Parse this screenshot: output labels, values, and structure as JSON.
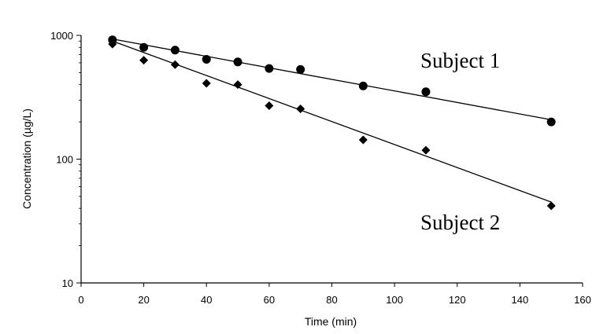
{
  "chart_data": {
    "type": "scatter",
    "title": "",
    "xlabel": "Time (min)",
    "ylabel": "Concentration (µg/L)",
    "xlim": [
      0,
      160
    ],
    "ylim": [
      10,
      1000
    ],
    "yscale": "log",
    "xticks": [
      0,
      20,
      40,
      60,
      80,
      100,
      120,
      140,
      160
    ],
    "xtick_labels": [
      "0",
      "20",
      "40",
      "60",
      "80",
      "100",
      "120",
      "140",
      "160"
    ],
    "yticks": [
      10,
      100,
      1000
    ],
    "ytick_labels": [
      "10",
      "100",
      "1000"
    ],
    "grid": false,
    "legend": "none",
    "series": [
      {
        "name": "Subject 1",
        "marker": "circle",
        "x": [
          10,
          20,
          30,
          40,
          50,
          60,
          70,
          90,
          110,
          150
        ],
        "y": [
          920,
          800,
          760,
          640,
          610,
          540,
          530,
          390,
          350,
          200
        ],
        "fit_line": {
          "x": [
            10,
            150
          ],
          "y": [
            935,
            208
          ]
        }
      },
      {
        "name": "Subject 2",
        "marker": "diamond",
        "x": [
          10,
          20,
          30,
          40,
          50,
          60,
          70,
          90,
          110,
          150
        ],
        "y": [
          850,
          630,
          580,
          410,
          400,
          270,
          255,
          143,
          118,
          42
        ],
        "fit_line": {
          "x": [
            10,
            150
          ],
          "y": [
            900,
            45
          ]
        }
      }
    ],
    "annotations": [
      {
        "text": "Subject 1",
        "series": "Subject 1"
      },
      {
        "text": "Subject 2",
        "series": "Subject 2"
      }
    ]
  }
}
